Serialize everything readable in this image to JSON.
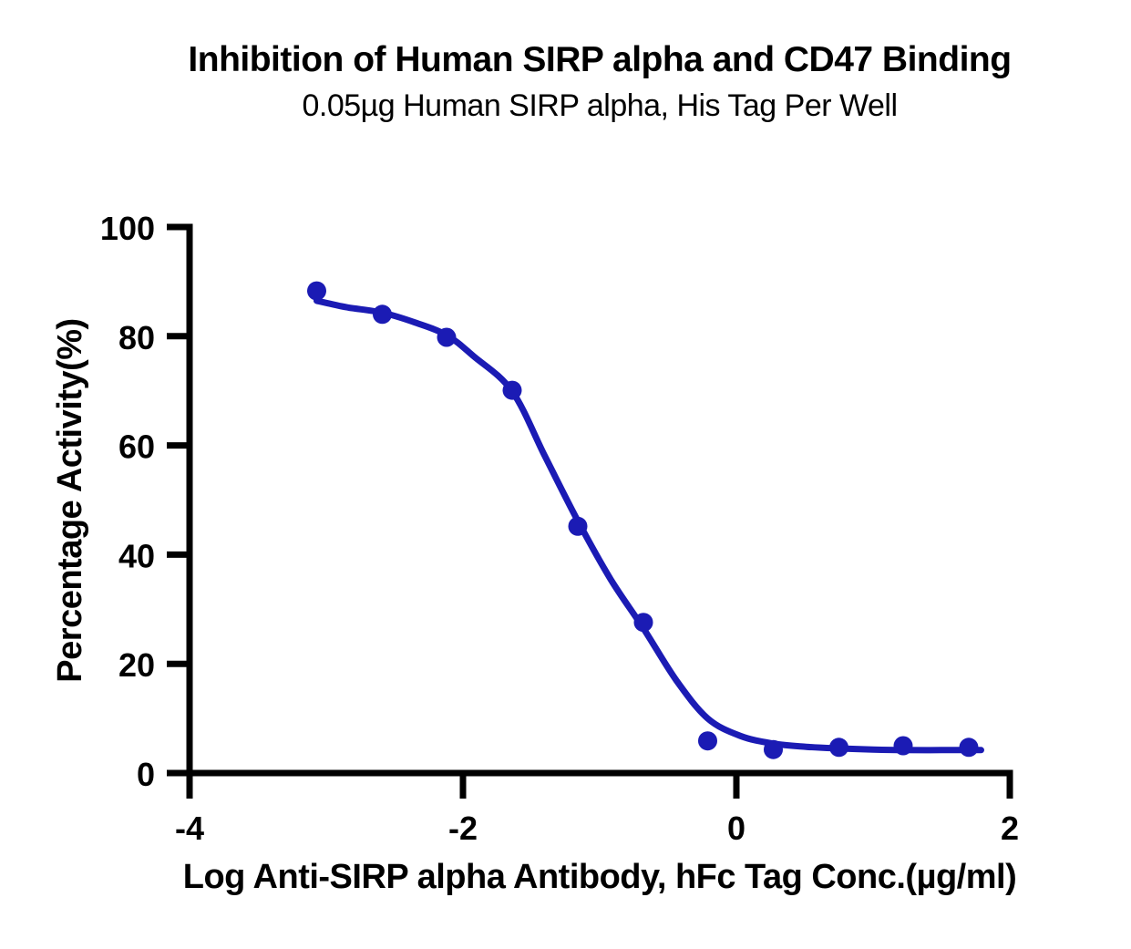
{
  "page": {
    "background": "#FFFFFF",
    "text_color": "#000000",
    "axis_color": "#000000"
  },
  "chart_data": {
    "type": "scatter",
    "title": "Inhibition of Human SIRP alpha and CD47 Binding",
    "subtitle": "0.05µg Human SIRP alpha, His Tag Per Well",
    "xlabel": "Log Anti-SIRP alpha Antibody, hFc Tag Conc.(µg/ml)",
    "ylabel": "Percentage Activity(%)",
    "xlim": [
      -4,
      2
    ],
    "ylim": [
      0,
      100
    ],
    "x_ticks": [
      "-4",
      "-2",
      "0",
      "2"
    ],
    "x_tick_values": [
      -4,
      -2,
      0,
      2
    ],
    "y_ticks": [
      "0",
      "20",
      "40",
      "60",
      "80",
      "100"
    ],
    "y_tick_values": [
      0,
      20,
      40,
      60,
      80,
      100
    ],
    "grid": false,
    "legend_position": "none",
    "series": [
      {
        "name": "Anti-SIRP alpha antibody, hFc Tag",
        "color": "#1B1BB4",
        "marker": "circle",
        "points": [
          {
            "x": -3.07,
            "y": 88.3
          },
          {
            "x": -2.59,
            "y": 84.0
          },
          {
            "x": -2.12,
            "y": 79.8
          },
          {
            "x": -1.64,
            "y": 70.1
          },
          {
            "x": -1.16,
            "y": 45.2
          },
          {
            "x": -0.68,
            "y": 27.6
          },
          {
            "x": -0.21,
            "y": 5.9
          },
          {
            "x": 0.27,
            "y": 4.3
          },
          {
            "x": 0.75,
            "y": 4.7
          },
          {
            "x": 1.22,
            "y": 5.0
          },
          {
            "x": 1.7,
            "y": 4.7
          }
        ],
        "fit_curve_points": [
          [
            -3.07,
            86.5
          ],
          [
            -2.85,
            85.3
          ],
          [
            -2.59,
            84.3
          ],
          [
            -2.35,
            82.5
          ],
          [
            -2.12,
            80.2
          ],
          [
            -1.92,
            76.3
          ],
          [
            -1.64,
            69.9
          ],
          [
            -1.4,
            58.0
          ],
          [
            -1.16,
            46.2
          ],
          [
            -0.92,
            35.5
          ],
          [
            -0.68,
            26.5
          ],
          [
            -0.44,
            17.0
          ],
          [
            -0.21,
            10.0
          ],
          [
            0.03,
            6.8
          ],
          [
            0.27,
            5.4
          ],
          [
            0.51,
            4.8
          ],
          [
            0.75,
            4.5
          ],
          [
            1.0,
            4.3
          ],
          [
            1.22,
            4.2
          ],
          [
            1.5,
            4.2
          ],
          [
            1.79,
            4.2
          ]
        ]
      }
    ]
  }
}
